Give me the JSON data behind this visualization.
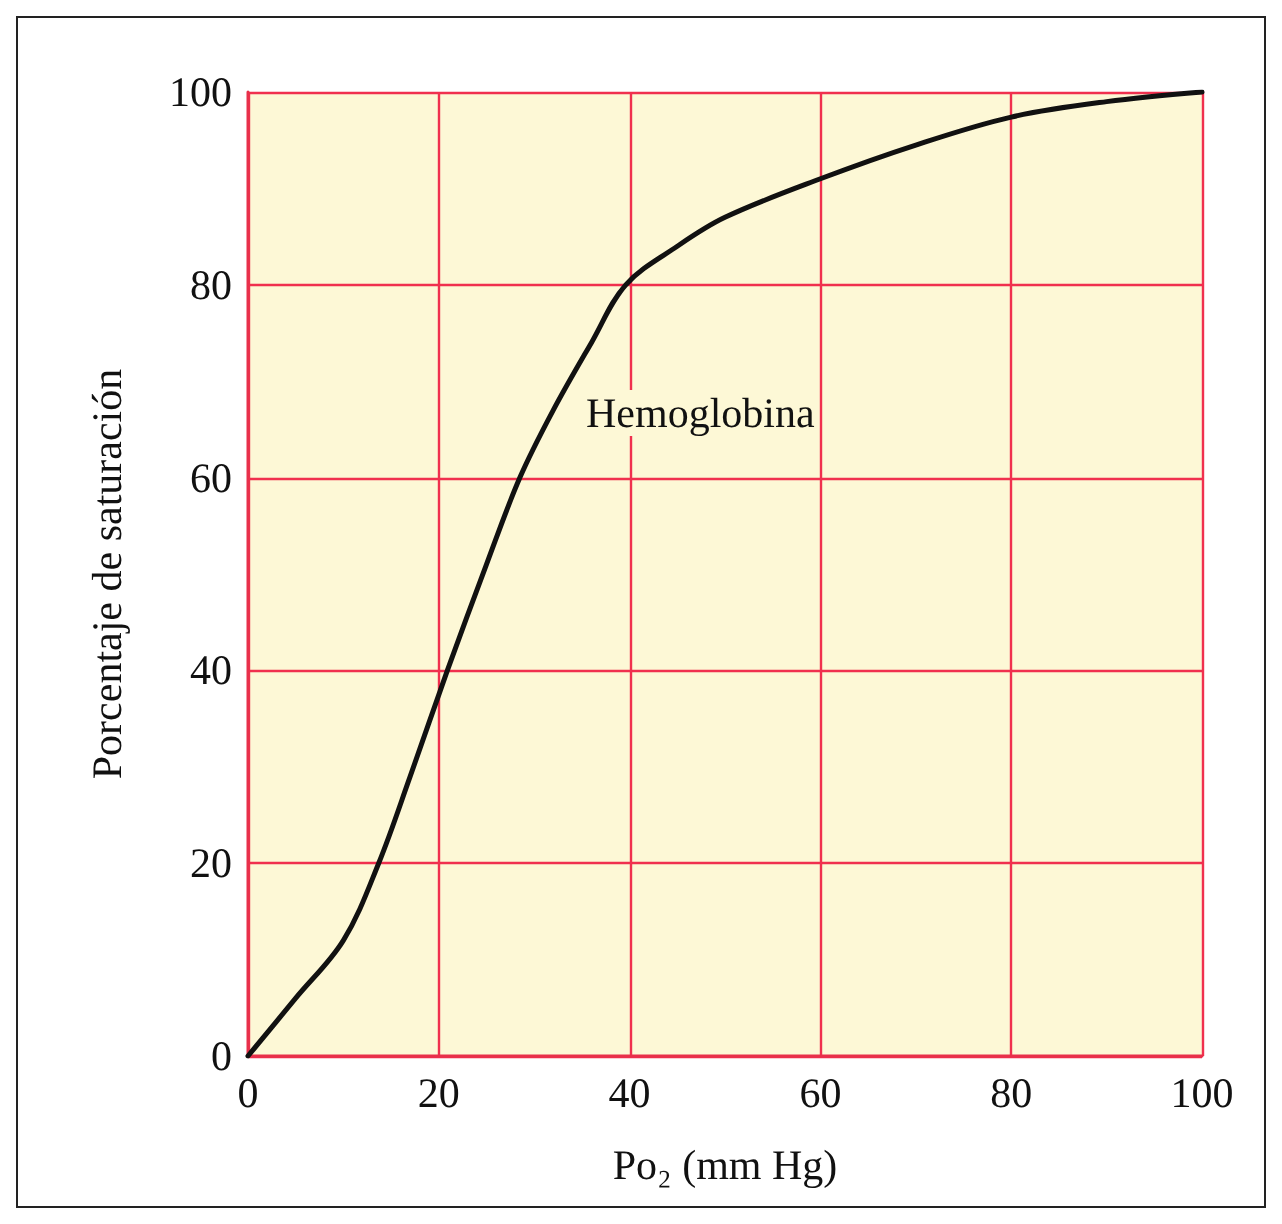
{
  "chart_data": {
    "type": "line",
    "xlabel": "Po₂ (mm Hg)",
    "ylabel": "Porcentaje de saturación",
    "x": [
      0,
      5,
      10,
      13.7,
      17,
      20.9,
      25,
      28.5,
      32,
      36,
      39.6,
      45,
      50,
      60,
      70,
      80,
      90,
      100
    ],
    "series": [
      {
        "color": "#111111",
        "values": [
          0,
          6,
          12,
          20,
          29,
          40,
          51,
          60,
          67,
          74,
          80,
          84,
          87,
          91,
          94.5,
          97.4,
          99,
          100
        ]
      }
    ],
    "annotations": [
      "Hemoglobina"
    ],
    "xlim": [
      0,
      100
    ],
    "xticks": [
      0,
      20,
      40,
      60,
      80,
      100
    ],
    "ylim": [
      0,
      100
    ],
    "yticks": [
      0,
      20,
      40,
      60,
      80,
      100
    ],
    "grid": true,
    "marker": "none",
    "line_style": "solid"
  }
}
